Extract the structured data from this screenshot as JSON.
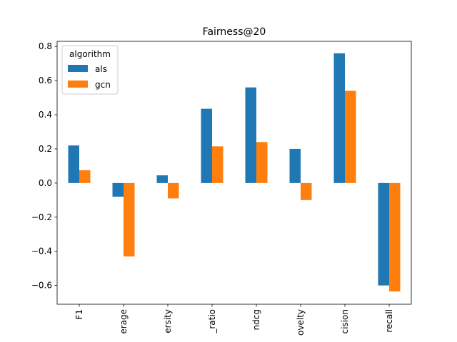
{
  "chart_data": {
    "type": "bar",
    "title": "Fairness@20",
    "xlabel": "",
    "ylabel": "",
    "categories": [
      "F1",
      "erage",
      "ersity",
      "_ratio",
      "ndcg",
      "ovelty",
      "cision",
      "recall"
    ],
    "series": [
      {
        "name": "als",
        "color": "#1f77b4",
        "values": [
          0.22,
          -0.08,
          0.045,
          0.435,
          0.56,
          0.2,
          0.76,
          -0.6
        ]
      },
      {
        "name": "gcn",
        "color": "#ff7f0e",
        "values": [
          0.075,
          -0.43,
          -0.09,
          0.215,
          0.24,
          -0.1,
          0.54,
          -0.635
        ]
      }
    ],
    "ylim": [
      -0.71,
      0.83
    ],
    "yticks": [
      -0.6,
      -0.4,
      -0.2,
      0.0,
      0.2,
      0.4,
      0.6,
      0.8
    ],
    "ytick_labels": [
      "−0.6",
      "−0.4",
      "−0.2",
      "0.0",
      "0.2",
      "0.4",
      "0.6",
      "0.8"
    ],
    "grid": false,
    "legend": {
      "title": "algorithm",
      "placement": "upper-left"
    }
  }
}
